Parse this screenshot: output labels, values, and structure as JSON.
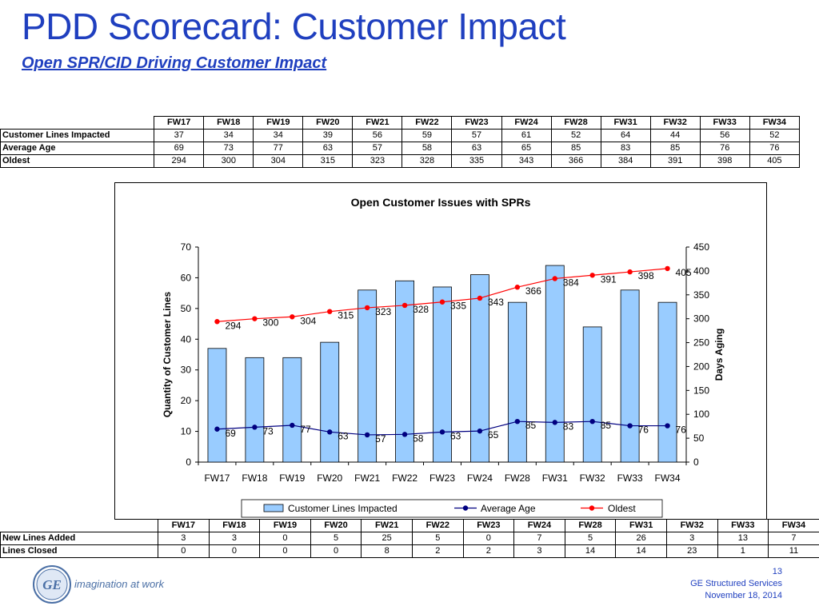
{
  "page": {
    "title": "PDD Scorecard: Customer Impact",
    "subtitle": "Open SPR/CID Driving Customer Impact"
  },
  "top_table": {
    "columns": [
      "FW17",
      "FW18",
      "FW19",
      "FW20",
      "FW21",
      "FW22",
      "FW23",
      "FW24",
      "FW28",
      "FW31",
      "FW32",
      "FW33",
      "FW34"
    ],
    "rows": [
      {
        "label": "Customer Lines Impacted",
        "values": [
          "37",
          "34",
          "34",
          "39",
          "56",
          "59",
          "57",
          "61",
          "52",
          "64",
          "44",
          "56",
          "52"
        ]
      },
      {
        "label": "Average Age",
        "values": [
          "69",
          "73",
          "77",
          "63",
          "57",
          "58",
          "63",
          "65",
          "85",
          "83",
          "85",
          "76",
          "76"
        ]
      },
      {
        "label": "Oldest",
        "values": [
          "294",
          "300",
          "304",
          "315",
          "323",
          "328",
          "335",
          "343",
          "366",
          "384",
          "391",
          "398",
          "405"
        ]
      }
    ]
  },
  "bottom_table": {
    "columns": [
      "FW17",
      "FW18",
      "FW19",
      "FW20",
      "FW21",
      "FW22",
      "FW23",
      "FW24",
      "FW28",
      "FW31",
      "FW32",
      "FW33",
      "FW34"
    ],
    "rows": [
      {
        "label": "New Lines Added",
        "values": [
          "3",
          "3",
          "0",
          "5",
          "25",
          "5",
          "0",
          "7",
          "5",
          "26",
          "3",
          "13",
          "7"
        ]
      },
      {
        "label": "Lines Closed",
        "values": [
          "0",
          "0",
          "0",
          "0",
          "8",
          "2",
          "2",
          "3",
          "14",
          "14",
          "23",
          "1",
          "11"
        ]
      }
    ]
  },
  "chart_data": {
    "type": "bar",
    "title": "Open Customer Issues with SPRs",
    "categories": [
      "FW17",
      "FW18",
      "FW19",
      "FW20",
      "FW21",
      "FW22",
      "FW23",
      "FW24",
      "FW28",
      "FW31",
      "FW32",
      "FW33",
      "FW34"
    ],
    "ylabel": "Quantity of Customer Lines",
    "y2label": "Days Aging",
    "ylim": [
      0,
      70
    ],
    "y2lim": [
      0,
      450
    ],
    "yticks": [
      0,
      10,
      20,
      30,
      40,
      50,
      60,
      70
    ],
    "y2ticks": [
      0,
      50,
      100,
      150,
      200,
      250,
      300,
      350,
      400,
      450
    ],
    "legend_placement": "bottom",
    "series": [
      {
        "name": "Customer Lines Impacted",
        "kind": "bar",
        "axis": "left",
        "color": "#99ccff",
        "values": [
          37,
          34,
          34,
          39,
          56,
          59,
          57,
          61,
          52,
          64,
          44,
          56,
          52
        ]
      },
      {
        "name": "Average Age",
        "kind": "line",
        "axis": "right",
        "color": "#000080",
        "values": [
          69,
          73,
          77,
          63,
          57,
          58,
          63,
          65,
          85,
          83,
          85,
          76,
          76
        ]
      },
      {
        "name": "Oldest",
        "kind": "line",
        "axis": "right",
        "color": "#ff0000",
        "values": [
          294,
          300,
          304,
          315,
          323,
          328,
          335,
          343,
          366,
          384,
          391,
          398,
          405
        ]
      }
    ]
  },
  "footer": {
    "logo_text": "GE",
    "tagline": "imagination at work",
    "page_number": "13",
    "company": "GE Structured Services",
    "date": "November 18, 2014"
  }
}
